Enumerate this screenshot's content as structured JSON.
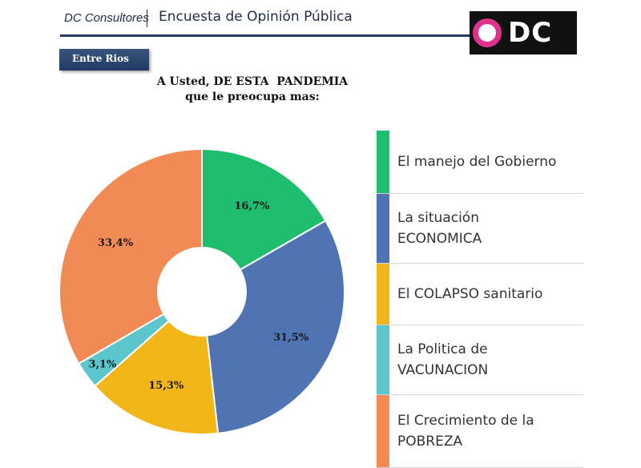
{
  "header": {
    "brand": "DC Consultores",
    "survey_title": "Encuesta de Opinión Pública",
    "logo_text": "DC",
    "region": "Entre Rios"
  },
  "question": {
    "line1": "A Usted, DE ESTA  PANDEMIA",
    "line2": "que le preocupa mas:"
  },
  "legend": [
    {
      "line1": "El manejo del Gobierno",
      "line2": "",
      "color": "#1fbe6e"
    },
    {
      "line1": "La situación",
      "line2": "ECONOMICA",
      "color": "#4f73b3"
    },
    {
      "line1": "El COLAPSO sanitario",
      "line2": "",
      "color": "#f2b619"
    },
    {
      "line1": "La Politica de",
      "line2": "VACUNACION",
      "color": "#5cc6cc"
    },
    {
      "line1": "El Crecimiento de la",
      "line2": "POBREZA",
      "color": "#f18a54"
    }
  ],
  "chart_data": {
    "type": "pie",
    "donut": true,
    "categories": [
      "El manejo del Gobierno",
      "La situación ECONOMICA",
      "El COLAPSO sanitario",
      "La Politica de VACUNACION",
      "El Crecimiento de la POBREZA"
    ],
    "values": [
      16.7,
      31.5,
      15.3,
      3.1,
      33.4
    ],
    "labels": [
      "16,7%",
      "31,5%",
      "15,3%",
      "3,1%",
      "33,4%"
    ],
    "colors": [
      "#1fbe6e",
      "#4f73b3",
      "#f2b619",
      "#5cc6cc",
      "#f18a54"
    ],
    "title": "",
    "legend_position": "right"
  }
}
